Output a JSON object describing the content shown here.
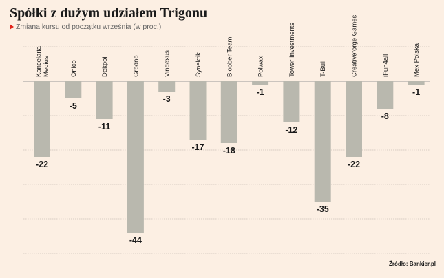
{
  "header": {
    "title": "Spółki z dużym udziałem Trigonu",
    "subtitle": "Zmiana kursu od początku września (w proc.)"
  },
  "footer": {
    "source": "Źródło: Bankier.pl"
  },
  "colors": {
    "background": "#fcefe3",
    "bar": "#b9b8ae",
    "marker": "#e2231a"
  },
  "chart_data": {
    "type": "bar",
    "categories": [
      "Kancelaria Medius",
      "Onico",
      "Dekpol",
      "Grodno",
      "Vindexus",
      "Synektik",
      "Bloober Team",
      "Polwax",
      "Tower Investments",
      "T-Bull",
      "Creativeforge Games",
      "iFun4all",
      "Mex Polska"
    ],
    "category_lines": [
      [
        "Kancelaria",
        "Medius"
      ],
      [
        "Onico"
      ],
      [
        "Dekpol"
      ],
      [
        "Grodno"
      ],
      [
        "Vindexus"
      ],
      [
        "Synektik"
      ],
      [
        "Bloober Team"
      ],
      [
        "Polwax"
      ],
      [
        "Tower Investments"
      ],
      [
        "T-Bull"
      ],
      [
        "Creativeforge Games"
      ],
      [
        "iFun4all"
      ],
      [
        "Mex Polska"
      ]
    ],
    "values": [
      -22,
      -5,
      -11,
      -44,
      -3,
      -17,
      -18,
      -1,
      -12,
      -35,
      -22,
      -8,
      -1
    ],
    "data_labels": [
      "-22",
      "-5",
      "-11",
      "-44",
      "-3",
      "-17",
      "-18",
      "-1",
      "-12",
      "-35",
      "-22",
      "-8",
      "-1"
    ],
    "ylim": [
      -50,
      10
    ],
    "gridlines": [
      10,
      0,
      -10,
      -20,
      -30,
      -40,
      -50
    ],
    "grid": true,
    "legend": "none"
  }
}
